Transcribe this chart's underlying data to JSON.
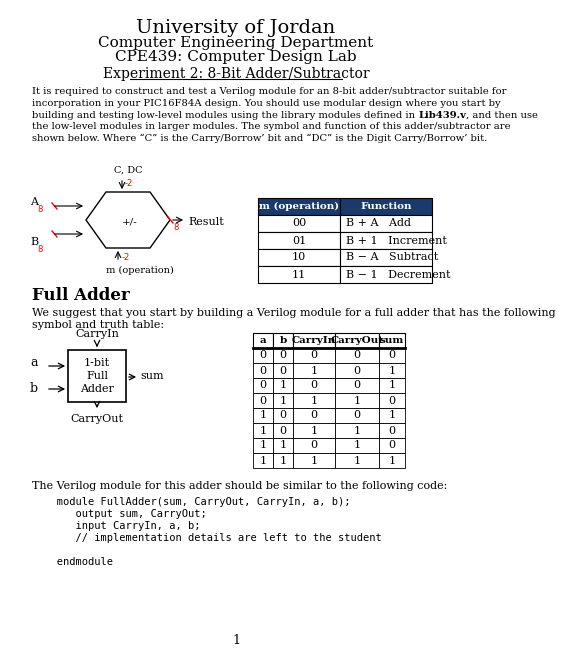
{
  "title1": "University of Jordan",
  "title2": "Computer Engineering Department",
  "title3": "CPE439: Computer Design Lab",
  "experiment_title": "Experiment 2: 8-Bit Adder/Subtractor",
  "intro_text_lines": [
    "It is required to construct and test a Verilog module for an 8-bit adder/subtractor suitable for",
    "incorporation in your PIC16F84A design. You should use modular design where you start by",
    "building and testing low-level modules using the library modules defined in Lib439.v, and then use",
    "the low-level modules in larger modules. The symbol and function of this adder/subtractor are",
    "shown below. Where “C” is the Carry/Borrow’ bit and “DC” is the Digit Carry/Borrow’ bit."
  ],
  "op_table_headers": [
    "m (operation)",
    "Function"
  ],
  "op_table_rows": [
    [
      "00",
      "B + A   Add"
    ],
    [
      "01",
      "B + 1   Increment"
    ],
    [
      "10",
      "B − A   Subtract"
    ],
    [
      "11",
      "B − 1   Decrement"
    ]
  ],
  "full_adder_title": "Full Adder",
  "full_adder_text_lines": [
    "We suggest that you start by building a Verilog module for a full adder that has the following",
    "symbol and truth table:"
  ],
  "truth_table_headers": [
    "a",
    "b",
    "CarryIn",
    "CarryOut",
    "sum"
  ],
  "truth_table_rows": [
    [
      0,
      0,
      0,
      0,
      0
    ],
    [
      0,
      0,
      1,
      0,
      1
    ],
    [
      0,
      1,
      0,
      0,
      1
    ],
    [
      0,
      1,
      1,
      1,
      0
    ],
    [
      1,
      0,
      0,
      0,
      1
    ],
    [
      1,
      0,
      1,
      1,
      0
    ],
    [
      1,
      1,
      0,
      1,
      0
    ],
    [
      1,
      1,
      1,
      1,
      1
    ]
  ],
  "verilog_text": "The Verilog module for this adder should be similar to the following code:",
  "verilog_code_lines": [
    "   module FullAdder(sum, CarryOut, CarryIn, a, b);",
    "      output sum, CarryOut;",
    "      input CarryIn, a, b;",
    "      // implementation details are left to the student",
    "",
    "   endmodule"
  ],
  "page_num": "1",
  "header_bg": "#1a3a6b",
  "header_fg": "#ffffff"
}
